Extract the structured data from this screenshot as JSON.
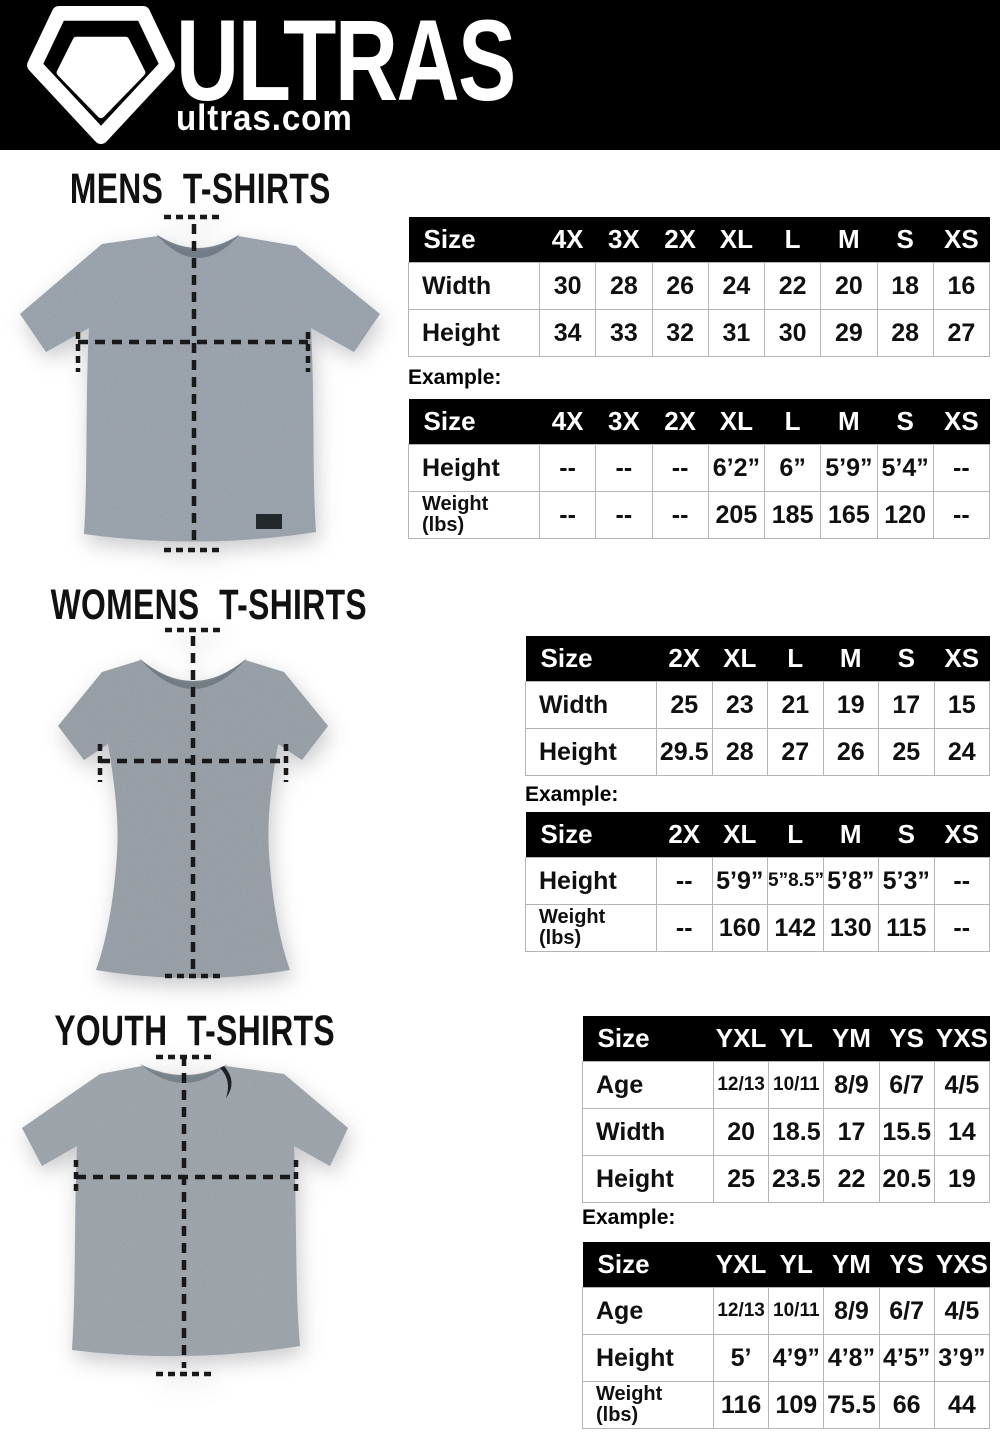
{
  "brand": {
    "name": "ULTRAS",
    "site": "ultras.com",
    "bar_color": "#000000",
    "logo_color": "#ffffff"
  },
  "sections": [
    {
      "title": "MENS T-SHIRTS",
      "shirt_color": "#8c96a1",
      "example_label": "Example:",
      "size_table": {
        "header": [
          "Size",
          "4X",
          "3X",
          "2X",
          "XL",
          "L",
          "M",
          "S",
          "XS"
        ],
        "rows": [
          {
            "label": "Width",
            "values": [
              "30",
              "28",
              "26",
              "24",
              "22",
              "20",
              "18",
              "16"
            ]
          },
          {
            "label": "Height",
            "values": [
              "34",
              "33",
              "32",
              "31",
              "30",
              "29",
              "28",
              "27"
            ]
          }
        ]
      },
      "example_table": {
        "header": [
          "Size",
          "4X",
          "3X",
          "2X",
          "XL",
          "L",
          "M",
          "S",
          "XS"
        ],
        "rows": [
          {
            "label": "Height",
            "values": [
              "--",
              "--",
              "--",
              "6’2”",
              "6”",
              "5’9”",
              "5’4”",
              "--"
            ]
          },
          {
            "label": "Weight\n(lbs)",
            "values": [
              "--",
              "--",
              "--",
              "205",
              "185",
              "165",
              "120",
              "--"
            ]
          }
        ]
      }
    },
    {
      "title": "WOMENS T-SHIRTS",
      "shirt_color": "#89929a",
      "example_label": "Example:",
      "size_table": {
        "header": [
          "Size",
          "2X",
          "XL",
          "L",
          "M",
          "S",
          "XS"
        ],
        "rows": [
          {
            "label": "Width",
            "values": [
              "25",
              "23",
              "21",
              "19",
              "17",
              "15"
            ]
          },
          {
            "label": "Height",
            "values": [
              "29.5",
              "28",
              "27",
              "26",
              "25",
              "24"
            ]
          }
        ]
      },
      "example_table": {
        "header": [
          "Size",
          "2X",
          "XL",
          "L",
          "M",
          "S",
          "XS"
        ],
        "rows": [
          {
            "label": "Height",
            "values": [
              "--",
              "5’9”",
              "5”8.5”",
              "5’8”",
              "5’3”",
              "--"
            ]
          },
          {
            "label": "Weight\n(lbs)",
            "values": [
              "--",
              "160",
              "142",
              "130",
              "115",
              "--"
            ]
          }
        ]
      }
    },
    {
      "title": "YOUTH T-SHIRTS",
      "shirt_color": "#90989f",
      "example_label": "Example:",
      "size_table": {
        "header": [
          "Size",
          "YXL",
          "YL",
          "YM",
          "YS",
          "YXS"
        ],
        "rows": [
          {
            "label": "Age",
            "values": [
              "12/13",
              "10/11",
              "8/9",
              "6/7",
              "4/5"
            ]
          },
          {
            "label": "Width",
            "values": [
              "20",
              "18.5",
              "17",
              "15.5",
              "14"
            ]
          },
          {
            "label": "Height",
            "values": [
              "25",
              "23.5",
              "22",
              "20.5",
              "19"
            ]
          }
        ]
      },
      "example_table": {
        "header": [
          "Size",
          "YXL",
          "YL",
          "YM",
          "YS",
          "YXS"
        ],
        "rows": [
          {
            "label": "Age",
            "values": [
              "12/13",
              "10/11",
              "8/9",
              "6/7",
              "4/5"
            ]
          },
          {
            "label": "Height",
            "values": [
              "5’",
              "4’9”",
              "4’8”",
              "4’5”",
              "3’9”"
            ]
          },
          {
            "label": "Weight\n(lbs)",
            "values": [
              "116",
              "109",
              "75.5",
              "66",
              "44"
            ]
          }
        ]
      }
    }
  ]
}
